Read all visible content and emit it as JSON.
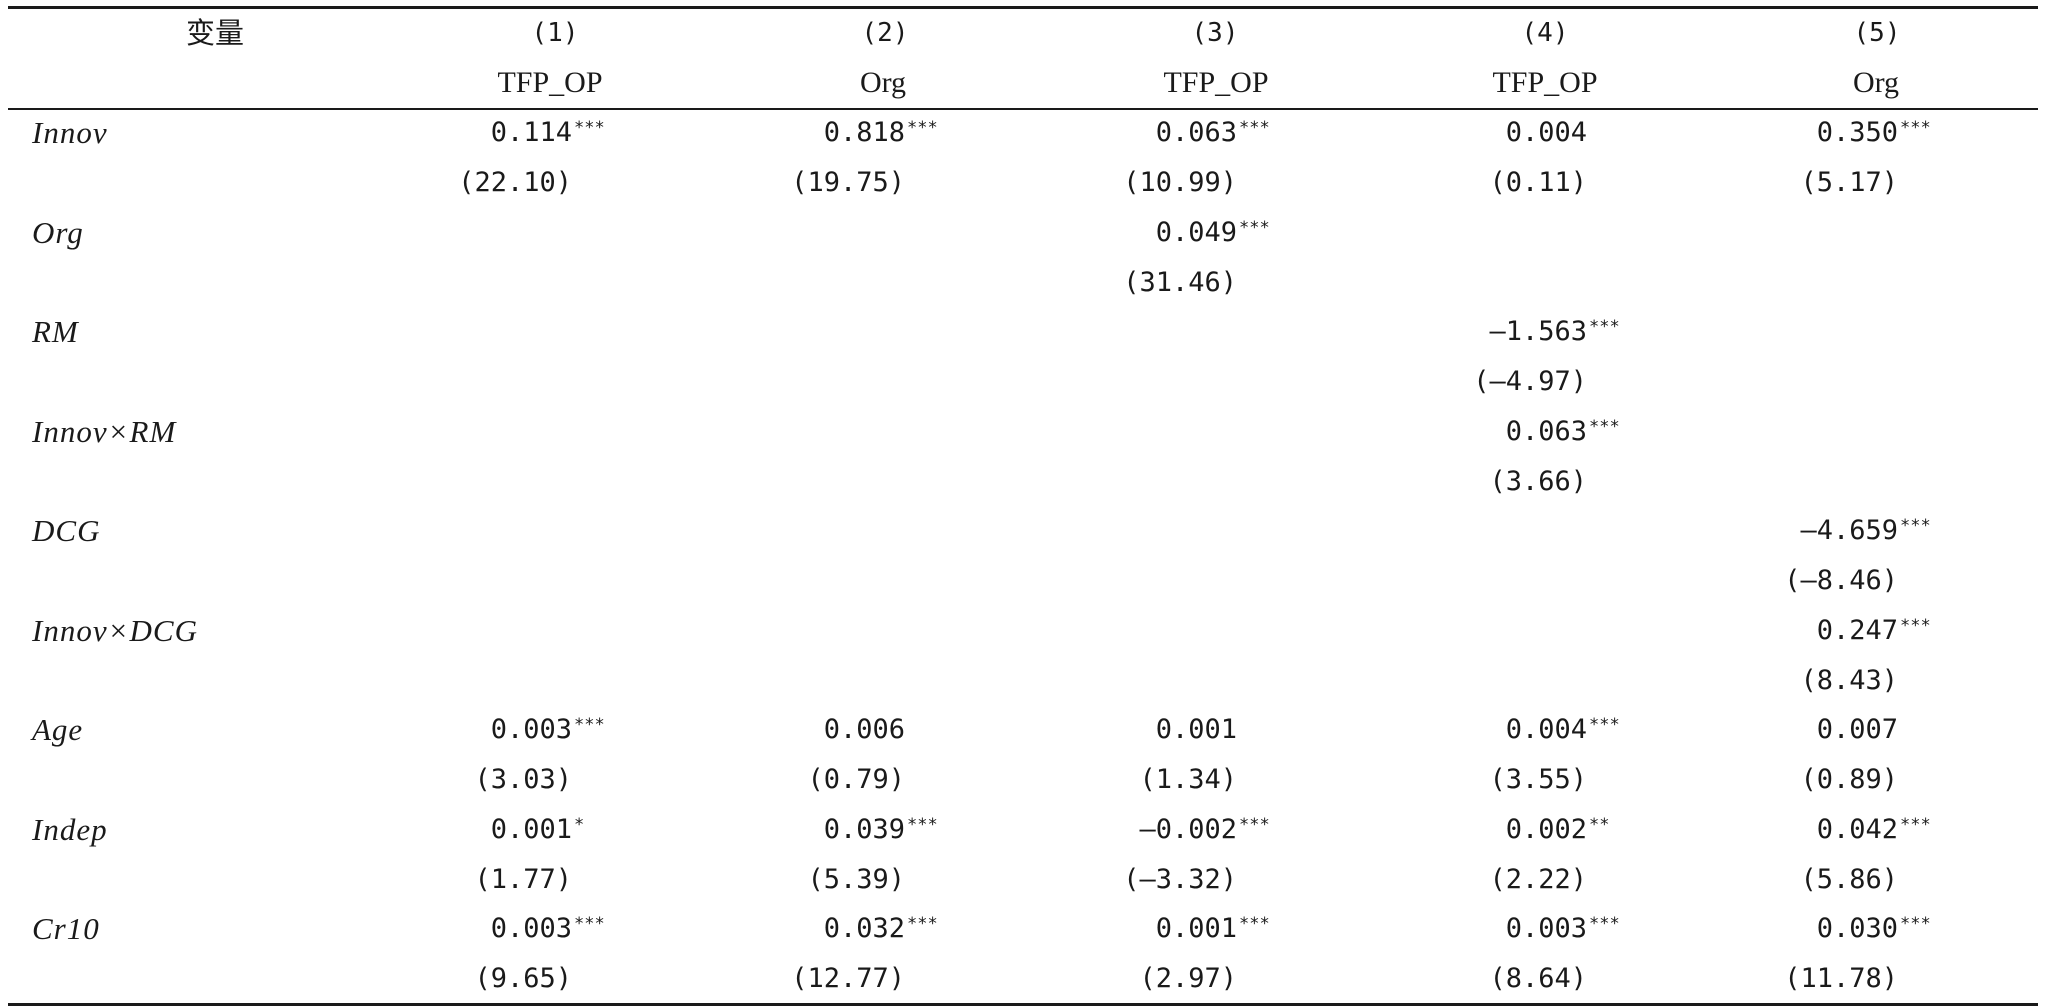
{
  "table": {
    "header": {
      "var_label": "变量",
      "columns": [
        {
          "num": "(1)",
          "model": "TFP_OP"
        },
        {
          "num": "(2)",
          "model": "Org"
        },
        {
          "num": "(3)",
          "model": "TFP_OP"
        },
        {
          "num": "(4)",
          "model": "TFP_OP"
        },
        {
          "num": "(5)",
          "model": "Org"
        }
      ]
    },
    "rows": [
      {
        "var": "Innov",
        "coef": [
          "0.114",
          "0.818",
          "0.063",
          "0.004",
          "0.350"
        ],
        "stars": [
          "***",
          "***",
          "***",
          "",
          "***"
        ],
        "t": [
          "(22.10)",
          "(19.75)",
          "(10.99)",
          "(0.11)",
          "(5.17)"
        ]
      },
      {
        "var": "Org",
        "coef": [
          "",
          "",
          "0.049",
          "",
          ""
        ],
        "stars": [
          "",
          "",
          "***",
          "",
          ""
        ],
        "t": [
          "",
          "",
          "(31.46)",
          "",
          ""
        ]
      },
      {
        "var": "RM",
        "coef": [
          "",
          "",
          "",
          "—1.563",
          ""
        ],
        "stars": [
          "",
          "",
          "",
          "***",
          ""
        ],
        "t": [
          "",
          "",
          "",
          "(—4.97)",
          ""
        ]
      },
      {
        "var": "Innov×RM",
        "coef": [
          "",
          "",
          "",
          "0.063",
          ""
        ],
        "stars": [
          "",
          "",
          "",
          "***",
          ""
        ],
        "t": [
          "",
          "",
          "",
          "(3.66)",
          ""
        ]
      },
      {
        "var": "DCG",
        "coef": [
          "",
          "",
          "",
          "",
          "—4.659"
        ],
        "stars": [
          "",
          "",
          "",
          "",
          "***"
        ],
        "t": [
          "",
          "",
          "",
          "",
          "(—8.46)"
        ]
      },
      {
        "var": "Innov×DCG",
        "coef": [
          "",
          "",
          "",
          "",
          "0.247"
        ],
        "stars": [
          "",
          "",
          "",
          "",
          "***"
        ],
        "t": [
          "",
          "",
          "",
          "",
          "(8.43)"
        ]
      },
      {
        "var": "Age",
        "coef": [
          "0.003",
          "0.006",
          "0.001",
          "0.004",
          "0.007"
        ],
        "stars": [
          "***",
          "",
          "",
          "***",
          ""
        ],
        "t": [
          "(3.03)",
          "(0.79)",
          "(1.34)",
          "(3.55)",
          "(0.89)"
        ]
      },
      {
        "var": "Indep",
        "coef": [
          "0.001",
          "0.039",
          "—0.002",
          "0.002",
          "0.042"
        ],
        "stars": [
          "*",
          "***",
          "***",
          "**",
          "***"
        ],
        "t": [
          "(1.77)",
          "(5.39)",
          "(—3.32)",
          "(2.22)",
          "(5.86)"
        ]
      },
      {
        "var": "Cr10",
        "coef": [
          "0.003",
          "0.032",
          "0.001",
          "0.003",
          "0.030"
        ],
        "stars": [
          "***",
          "***",
          "***",
          "***",
          "***"
        ],
        "t": [
          "(9.65)",
          "(12.77)",
          "(2.97)",
          "(8.64)",
          "(11.78)"
        ]
      }
    ]
  }
}
